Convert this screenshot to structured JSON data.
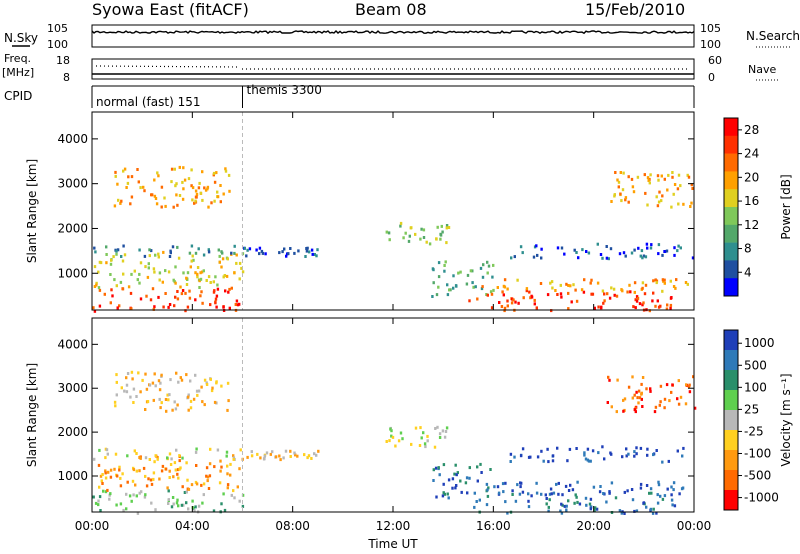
{
  "header": {
    "station": "Syowa East (fitACF)",
    "beam": "Beam 08",
    "date": "15/Feb/2010"
  },
  "top_panels": {
    "nsky": {
      "label": "N.Sky",
      "tick_top": "10^5",
      "tick_bottom": "10^0",
      "right_label": "N.Search",
      "right_tick_top": "10^5",
      "right_tick_bottom": "10^0"
    },
    "freq": {
      "label_line1": "Freq.",
      "label_line2": "[MHz]",
      "tick_top": "18",
      "tick_bottom": "8",
      "right_label": "Nave",
      "right_tick_top": "60",
      "right_tick_bottom": "0"
    },
    "cpid": {
      "label": "CPID",
      "modes": [
        "normal (fast) 151",
        "themis 3300"
      ],
      "mode_change_hour": 6.0
    }
  },
  "colors": {
    "power_scale": [
      "#0000ff",
      "#1f4fa0",
      "#2f8f8f",
      "#53a86a",
      "#7fc85a",
      "#e0d020",
      "#ffa000",
      "#ff6a00",
      "#ff3000",
      "#ff0000"
    ],
    "velocity_scale": [
      "#1f3fb8",
      "#2f7ab8",
      "#2a8f6a",
      "#5fcf4f",
      "#b8b8b8",
      "#ffd020",
      "#ff9a10",
      "#ff6a00",
      "#ff0000"
    ]
  },
  "chart_data": [
    {
      "type": "heatmap",
      "title": "Power",
      "xlabel": "Time UT",
      "ylabel": "Slant Range [km]",
      "x_ticks": [
        "00:00",
        "04:00",
        "08:00",
        "12:00",
        "16:00",
        "20:00",
        "00:00"
      ],
      "x_range_hours": [
        0,
        24
      ],
      "y_ticks": [
        "1000",
        "2000",
        "3000",
        "4000"
      ],
      "ylim": [
        180,
        4600
      ],
      "colorbar_label": "Power [dB]",
      "colorbar_ticks": [
        "4",
        "8",
        "12",
        "16",
        "20",
        "24",
        "28"
      ],
      "colorbar_range": [
        0,
        30
      ],
      "echo_regions": [
        {
          "t": [
            0.0,
            6.0
          ],
          "r": [
            180,
            700
          ],
          "level": 8
        },
        {
          "t": [
            0.0,
            6.0
          ],
          "r": [
            700,
            1500
          ],
          "level": 5
        },
        {
          "t": [
            0.0,
            6.0
          ],
          "r": [
            1400,
            1650
          ],
          "level": 2
        },
        {
          "t": [
            6.0,
            9.0
          ],
          "r": [
            1400,
            1600
          ],
          "level": 1
        },
        {
          "t": [
            0.8,
            5.5
          ],
          "r": [
            2500,
            3400
          ],
          "level": 6
        },
        {
          "t": [
            11.7,
            14.2
          ],
          "r": [
            1650,
            2150
          ],
          "level": 4
        },
        {
          "t": [
            13.5,
            16.0
          ],
          "r": [
            500,
            1300
          ],
          "level": 3
        },
        {
          "t": [
            15.0,
            23.2
          ],
          "r": [
            180,
            650
          ],
          "level": 8
        },
        {
          "t": [
            15.5,
            24.0
          ],
          "r": [
            600,
            900
          ],
          "level": 6
        },
        {
          "t": [
            16.5,
            24.0
          ],
          "r": [
            1350,
            1700
          ],
          "level": 1
        },
        {
          "t": [
            20.5,
            24.0
          ],
          "r": [
            2500,
            3300
          ],
          "level": 6
        }
      ]
    },
    {
      "type": "heatmap",
      "title": "Velocity",
      "xlabel": "Time UT",
      "ylabel": "Slant Range [km]",
      "x_ticks": [
        "00:00",
        "04:00",
        "08:00",
        "12:00",
        "16:00",
        "20:00",
        "00:00"
      ],
      "x_range_hours": [
        0,
        24
      ],
      "y_ticks": [
        "1000",
        "2000",
        "3000",
        "4000"
      ],
      "ylim": [
        180,
        4600
      ],
      "colorbar_label": "Velocity [m s^-1]",
      "colorbar_ticks": [
        "1000",
        "500",
        "100",
        "25",
        "-25",
        "-100",
        "-500",
        "-1000"
      ],
      "echo_regions": [
        {
          "t": [
            0.0,
            6.0
          ],
          "r": [
            180,
            700
          ],
          "level": 3
        },
        {
          "t": [
            0.0,
            6.0
          ],
          "r": [
            700,
            1500
          ],
          "level": 6
        },
        {
          "t": [
            0.0,
            6.0
          ],
          "r": [
            1400,
            1650
          ],
          "level": 4
        },
        {
          "t": [
            6.0,
            9.0
          ],
          "r": [
            1400,
            1600
          ],
          "level": 5
        },
        {
          "t": [
            0.8,
            5.5
          ],
          "r": [
            2500,
            3400
          ],
          "level": 5
        },
        {
          "t": [
            11.7,
            14.2
          ],
          "r": [
            1650,
            2150
          ],
          "level": 4
        },
        {
          "t": [
            13.5,
            16.0
          ],
          "r": [
            500,
            1300
          ],
          "level": 1
        },
        {
          "t": [
            15.0,
            23.2
          ],
          "r": [
            180,
            650
          ],
          "level": 1
        },
        {
          "t": [
            15.5,
            24.0
          ],
          "r": [
            600,
            900
          ],
          "level": 0
        },
        {
          "t": [
            16.5,
            24.0
          ],
          "r": [
            1350,
            1700
          ],
          "level": 0
        },
        {
          "t": [
            20.5,
            24.0
          ],
          "r": [
            2500,
            3300
          ],
          "level": 7
        }
      ]
    }
  ]
}
